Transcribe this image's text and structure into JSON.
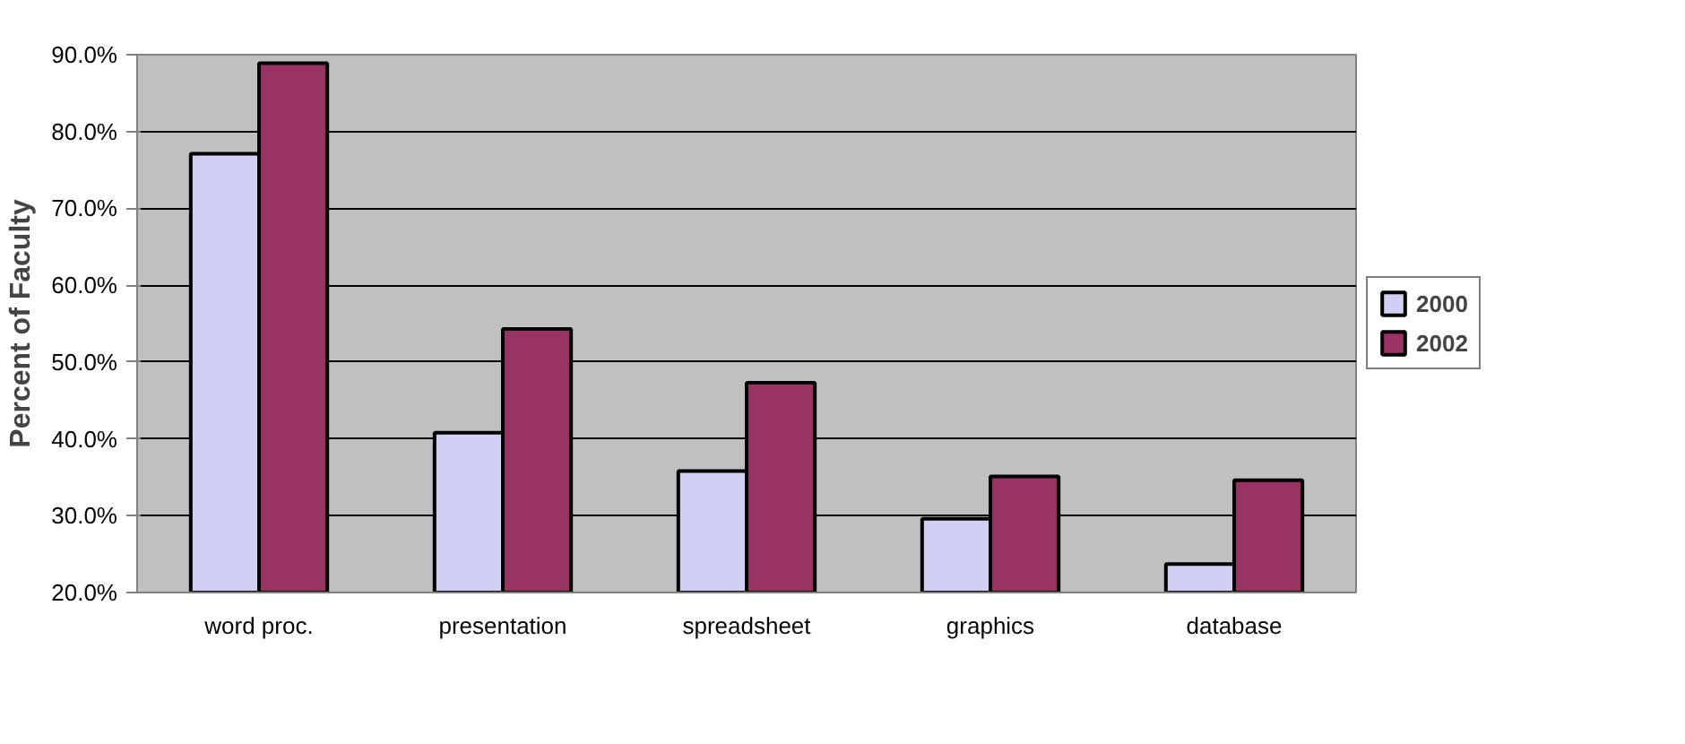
{
  "chart_data": {
    "type": "bar",
    "ylabel": "Percent of Faculty",
    "categories": [
      "word proc.",
      "presentation",
      "spreadsheet",
      "graphics",
      "database"
    ],
    "series": [
      {
        "name": "2000",
        "color": "#d0d0f4",
        "values": [
          77.1,
          40.8,
          35.8,
          29.6,
          23.7
        ]
      },
      {
        "name": "2002",
        "color": "#993366",
        "values": [
          88.9,
          54.3,
          47.3,
          35.1,
          34.6
        ]
      }
    ],
    "ylim": [
      20,
      90
    ],
    "yticks": [
      {
        "value": 20,
        "label": "20.0%"
      },
      {
        "value": 30,
        "label": "30.0%"
      },
      {
        "value": 40,
        "label": "40.0%"
      },
      {
        "value": 50,
        "label": "50.0%"
      },
      {
        "value": 60,
        "label": "60.0%"
      },
      {
        "value": 70,
        "label": "70.0%"
      },
      {
        "value": 80,
        "label": "80.0%"
      },
      {
        "value": 90,
        "label": "90.0%"
      }
    ],
    "grid": "y",
    "legend": "right"
  }
}
